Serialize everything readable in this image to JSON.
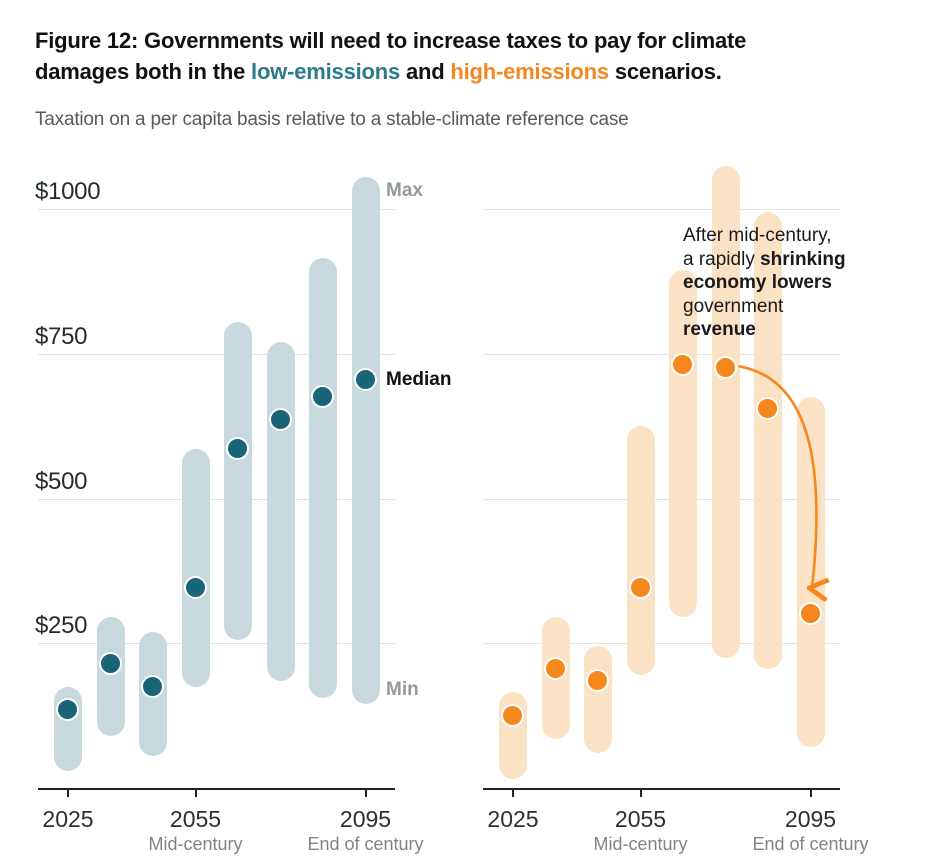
{
  "figure": {
    "title_lines": [
      [
        {
          "text": "Figure 12:"
        },
        {
          "text": " Governments will need to increase taxes to pay for climate"
        }
      ],
      [
        {
          "text": "damages both in the "
        },
        {
          "text": "low-emissions",
          "color": "teal"
        },
        {
          "text": " and "
        },
        {
          "text": "high-emissions",
          "color": "orange"
        },
        {
          "text": " scenarios."
        }
      ]
    ],
    "subtitle": "Taxation on a per capita basis relative to a stable-climate reference case"
  },
  "colors": {
    "teal_title": "#2b7b8b",
    "teal_dot": "#1a6477",
    "teal_bar": "#c8d9dd",
    "orange": "#f6871d",
    "orange_bar": "#fce2c4",
    "gridline": "#e3e3e3",
    "axis": "#222222",
    "gray_range_label": "#939a9d",
    "subtitle_gray": "#595959"
  },
  "chart_data": [
    {
      "type": "range-bar",
      "name": "low-emissions scenario",
      "unit_hint": "taxation per capita, USD",
      "x": [
        2025,
        2035,
        2045,
        2055,
        2065,
        2075,
        2085,
        2095
      ],
      "x_ticks": [
        {
          "year": "2025",
          "sub": ""
        },
        {
          "year": "2055",
          "sub": "Mid-century"
        },
        {
          "year": "2095",
          "sub": "End of century"
        }
      ],
      "y_gridlines": [
        {
          "value": 250,
          "label": "$250"
        },
        {
          "value": 500,
          "label": "$500"
        },
        {
          "value": 750,
          "label": "$750"
        },
        {
          "value": 1000,
          "label": "$1000"
        }
      ],
      "show_y_labels": true,
      "ylim": [
        0,
        1100
      ],
      "range_labels": {
        "max": "Max",
        "median": "Median",
        "min": "Min"
      },
      "series": [
        {
          "name": "min",
          "values": [
            30,
            90,
            55,
            175,
            255,
            185,
            155,
            145
          ]
        },
        {
          "name": "median",
          "values": [
            135,
            215,
            175,
            345,
            585,
            635,
            675,
            705
          ]
        },
        {
          "name": "max",
          "values": [
            175,
            295,
            270,
            585,
            805,
            770,
            915,
            1055
          ]
        }
      ],
      "bar_color": "#c8d9dd",
      "dot_color": "#1a6477"
    },
    {
      "type": "range-bar",
      "name": "high-emissions scenario",
      "unit_hint": "taxation per capita, USD",
      "x": [
        2025,
        2035,
        2045,
        2055,
        2065,
        2075,
        2085,
        2095
      ],
      "x_ticks": [
        {
          "year": "2025",
          "sub": ""
        },
        {
          "year": "2055",
          "sub": "Mid-century"
        },
        {
          "year": "2095",
          "sub": "End of century"
        }
      ],
      "y_gridlines": [
        {
          "value": 250
        },
        {
          "value": 500
        },
        {
          "value": 750
        },
        {
          "value": 1000
        }
      ],
      "show_y_labels": false,
      "ylim": [
        0,
        1100
      ],
      "series": [
        {
          "name": "min",
          "values": [
            15,
            85,
            60,
            195,
            295,
            225,
            205,
            70
          ]
        },
        {
          "name": "median",
          "values": [
            125,
            205,
            185,
            345,
            730,
            725,
            655,
            300
          ]
        },
        {
          "name": "max",
          "values": [
            165,
            295,
            245,
            625,
            895,
            1075,
            995,
            675
          ]
        }
      ],
      "bar_color": "#fce2c4",
      "dot_color": "#f6871d",
      "annotation": {
        "lines": [
          [
            {
              "text": "After mid-century,"
            }
          ],
          [
            {
              "text": "a rapidly "
            },
            {
              "text": "shrinking",
              "bold": true
            }
          ],
          [
            {
              "text": "economy lowers",
              "bold": true
            }
          ],
          [
            {
              "text": "government"
            }
          ],
          [
            {
              "text": "revenue",
              "bold": true
            }
          ]
        ]
      },
      "arrow": {
        "from_year": 2075,
        "to_year": 2095,
        "meaning": "median tax drops from 2075 to 2095 as shrinking economy lowers government revenue"
      }
    }
  ]
}
